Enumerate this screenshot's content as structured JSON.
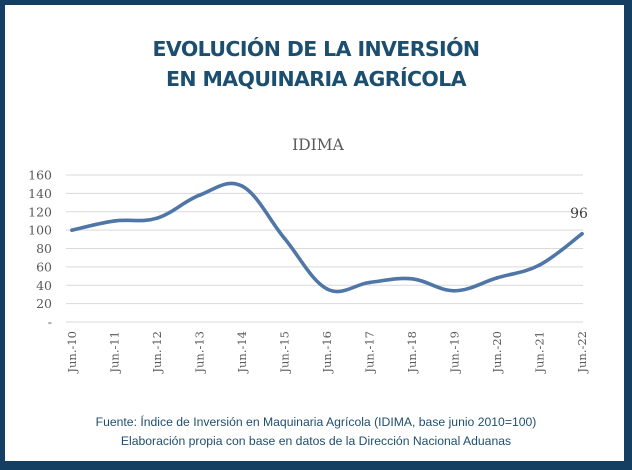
{
  "title": {
    "line1": "EVOLUCIÓN DE LA INVERSIÓN",
    "line2": "EN MAQUINARIA AGRÍCOLA"
  },
  "footer": {
    "line1": "Fuente: Índice de Inversión en Maquinaria Agrícola (IDIMA, base junio 2010=100)",
    "line2": "Elaboración propia con base en datos de la Dirección Nacional Aduanas"
  },
  "colors": {
    "frame": "#143f63",
    "title": "#1b4e6f",
    "line": "#4f76a6",
    "grid": "#d9d9d9"
  },
  "chart_data": {
    "type": "line",
    "title": "IDIMA",
    "xlabel": "",
    "ylabel": "",
    "ylim": [
      0,
      160
    ],
    "grid": true,
    "legend": "none",
    "yticks": [
      {
        "value": 0,
        "label": "-"
      },
      {
        "value": 20,
        "label": "20"
      },
      {
        "value": 40,
        "label": "40"
      },
      {
        "value": 60,
        "label": "60"
      },
      {
        "value": 80,
        "label": "80"
      },
      {
        "value": 100,
        "label": "100"
      },
      {
        "value": 120,
        "label": "120"
      },
      {
        "value": 140,
        "label": "140"
      },
      {
        "value": 160,
        "label": "160"
      }
    ],
    "categories": [
      "Jun.-10",
      "Jun.-11",
      "Jun.-12",
      "Jun.-13",
      "Jun.-14",
      "Jun.-15",
      "Jun.-16",
      "Jun.-17",
      "Jun.-18",
      "Jun.-19",
      "Jun.-20",
      "Jun.-21",
      "Jun.-22"
    ],
    "series": [
      {
        "name": "IDIMA",
        "values": [
          100,
          110,
          113,
          138,
          148,
          91,
          36,
          43,
          47,
          34,
          48,
          62,
          96
        ]
      }
    ],
    "annotations": [
      {
        "category": "Jun.-22",
        "label": "96"
      }
    ]
  }
}
